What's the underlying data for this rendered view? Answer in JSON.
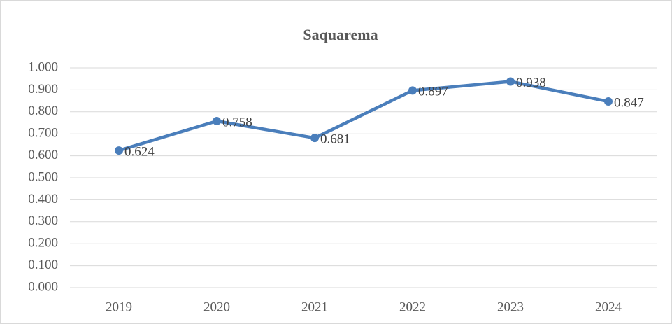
{
  "chart_data": {
    "type": "line",
    "title": "Saquarema",
    "categories": [
      "2019",
      "2020",
      "2021",
      "2022",
      "2023",
      "2024"
    ],
    "series": [
      {
        "name": "Saquarema",
        "color": "#4a7ebb",
        "values": [
          0.624,
          0.758,
          0.681,
          0.897,
          0.938,
          0.847
        ]
      }
    ],
    "ylim": [
      0,
      1
    ],
    "yticks": [
      {
        "value": 0,
        "label": "0.000"
      },
      {
        "value": 0.1,
        "label": "0.100"
      },
      {
        "value": 0.2,
        "label": "0.200"
      },
      {
        "value": 0.3,
        "label": "0.300"
      },
      {
        "value": 0.4,
        "label": "0.400"
      },
      {
        "value": 0.5,
        "label": "0.500"
      },
      {
        "value": 0.6,
        "label": "0.600"
      },
      {
        "value": 0.7,
        "label": "0.700"
      },
      {
        "value": 0.8,
        "label": "0.800"
      },
      {
        "value": 0.9,
        "label": "0.900"
      },
      {
        "value": 1,
        "label": "1.000"
      }
    ],
    "grid": true
  }
}
